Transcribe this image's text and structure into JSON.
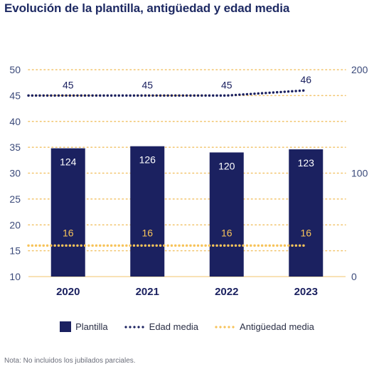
{
  "title": "Evolución de la plantilla, antigüedad y edad media",
  "note": "Nota: No incluidos los jubilados parciales.",
  "legend": {
    "plantilla": "Plantilla",
    "edad": "Edad media",
    "antiguedad": "Antigüedad media"
  },
  "colors": {
    "bar": "#1b2160",
    "edad": "#1b2160",
    "antiguedad": "#f7c35a",
    "grid": "#f2c46b",
    "axis_text": "#3b4a7a"
  },
  "chart_data": {
    "type": "bar",
    "categories": [
      "2020",
      "2021",
      "2022",
      "2023"
    ],
    "series": [
      {
        "name": "Plantilla",
        "type": "bar",
        "axis": "right",
        "values": [
          124,
          126,
          120,
          123
        ]
      },
      {
        "name": "Edad media",
        "type": "line",
        "axis": "left",
        "values": [
          45,
          45,
          45,
          46
        ]
      },
      {
        "name": "Antigüedad media",
        "type": "line",
        "axis": "left",
        "values": [
          16,
          16,
          16,
          16
        ]
      }
    ],
    "left_axis": {
      "min": 10,
      "max": 50,
      "ticks": [
        10,
        15,
        20,
        25,
        30,
        35,
        40,
        45,
        50
      ]
    },
    "right_axis": {
      "min": 0,
      "max": 200,
      "ticks": [
        0,
        100,
        200
      ]
    },
    "grid": true,
    "legend_position": "bottom"
  }
}
